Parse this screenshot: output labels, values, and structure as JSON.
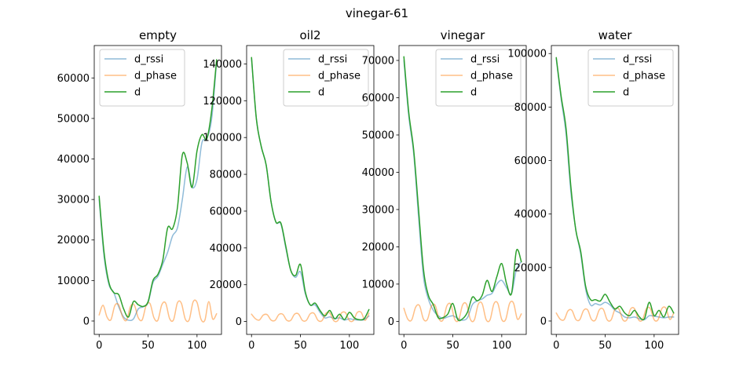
{
  "figure": {
    "suptitle": "vinegar-61"
  },
  "colors": {
    "d_rssi": "#1f77b4",
    "d_phase": "#ff7f0e",
    "d": "#2ca02c",
    "legend_border": "#cccccc"
  },
  "chart_data": [
    {
      "type": "line",
      "title": "empty",
      "xlim": [
        -5,
        125
      ],
      "ylim": [
        -3300,
        68000
      ],
      "xticks": [
        0,
        50,
        100
      ],
      "yticks": [
        0,
        10000,
        20000,
        30000,
        40000,
        50000,
        60000
      ],
      "legend": "top-left",
      "series": [
        {
          "name": "d_rssi",
          "x": [
            0,
            5,
            10,
            15,
            20,
            25,
            30,
            35,
            40,
            45,
            50,
            55,
            60,
            65,
            70,
            75,
            80,
            85,
            90,
            95,
            100,
            105,
            110,
            115,
            120
          ],
          "values": [
            30000,
            16000,
            9000,
            7000,
            3500,
            1000,
            200,
            500,
            3000,
            3500,
            4500,
            9500,
            11000,
            14000,
            17000,
            21000,
            23000,
            30000,
            38000,
            33000,
            35000,
            44000,
            45000,
            50000,
            64000
          ]
        },
        {
          "name": "d_phase",
          "x": [
            0,
            4,
            8,
            12,
            16,
            20,
            24,
            28,
            32,
            36,
            40,
            44,
            48,
            52,
            56,
            60,
            64,
            68,
            72,
            76,
            80,
            84,
            88,
            92,
            96,
            100,
            104,
            108,
            112,
            116,
            120
          ],
          "values": [
            1500,
            3900,
            1000,
            300,
            3800,
            4000,
            1000,
            200,
            3600,
            3900,
            800,
            300,
            3800,
            4300,
            800,
            200,
            4000,
            4400,
            600,
            300,
            4500,
            4400,
            500,
            300,
            4700,
            4600,
            500,
            200,
            4800,
            500,
            1800
          ]
        },
        {
          "name": "d",
          "x": [
            0,
            5,
            10,
            15,
            20,
            25,
            30,
            35,
            40,
            45,
            50,
            55,
            60,
            65,
            70,
            75,
            80,
            85,
            90,
            95,
            100,
            105,
            110,
            115,
            120
          ],
          "values": [
            30800,
            17000,
            9500,
            7000,
            6500,
            3000,
            1000,
            4800,
            4000,
            3600,
            4800,
            10000,
            11500,
            15000,
            23000,
            22800,
            28000,
            41000,
            39000,
            33000,
            42000,
            46000,
            45000,
            52000,
            64500
          ]
        }
      ]
    },
    {
      "type": "line",
      "title": "oil2",
      "xlim": [
        -5,
        125
      ],
      "ylim": [
        -7000,
        150000
      ],
      "xticks": [
        0,
        50,
        100
      ],
      "yticks": [
        0,
        20000,
        40000,
        60000,
        80000,
        100000,
        120000,
        140000
      ],
      "legend": "top-right",
      "series": [
        {
          "name": "d_rssi",
          "x": [
            0,
            5,
            10,
            15,
            20,
            25,
            30,
            35,
            40,
            45,
            50,
            55,
            60,
            65,
            70,
            75,
            80,
            85,
            90,
            95,
            100,
            105,
            110,
            115,
            120
          ],
          "values": [
            143000,
            110000,
            95000,
            85000,
            65000,
            54000,
            53000,
            40000,
            28000,
            24000,
            27000,
            15000,
            9000,
            9000,
            5000,
            2000,
            2500,
            1500,
            2000,
            800,
            1500,
            1000,
            800,
            1000,
            3000
          ]
        },
        {
          "name": "d_phase",
          "x": [
            0,
            4,
            8,
            12,
            16,
            20,
            24,
            28,
            32,
            36,
            40,
            44,
            48,
            52,
            56,
            60,
            64,
            68,
            72,
            76,
            80,
            84,
            88,
            92,
            96,
            100,
            104,
            108,
            112,
            116,
            120
          ],
          "values": [
            4000,
            1500,
            800,
            3500,
            3700,
            800,
            600,
            3800,
            3900,
            700,
            600,
            4000,
            4100,
            600,
            600,
            4200,
            4400,
            600,
            500,
            4500,
            4600,
            500,
            400,
            4700,
            4800,
            500,
            500,
            4900,
            5000,
            600,
            4500
          ]
        },
        {
          "name": "d",
          "x": [
            0,
            5,
            10,
            15,
            20,
            25,
            30,
            35,
            40,
            45,
            50,
            55,
            60,
            65,
            70,
            75,
            80,
            85,
            90,
            95,
            100,
            105,
            110,
            115,
            120
          ],
          "values": [
            143500,
            110000,
            95000,
            85000,
            65000,
            54000,
            53500,
            41000,
            28000,
            25000,
            31000,
            16000,
            9000,
            10000,
            6000,
            3000,
            6000,
            1500,
            4000,
            1000,
            5000,
            2000,
            1000,
            1500,
            6500
          ]
        }
      ]
    },
    {
      "type": "line",
      "title": "vinegar",
      "xlim": [
        -5,
        125
      ],
      "ylim": [
        -3500,
        74000
      ],
      "xticks": [
        0,
        50,
        100
      ],
      "yticks": [
        0,
        10000,
        20000,
        30000,
        40000,
        50000,
        60000,
        70000
      ],
      "legend": "top-right",
      "series": [
        {
          "name": "d_rssi",
          "x": [
            0,
            5,
            10,
            15,
            20,
            25,
            30,
            35,
            40,
            45,
            50,
            55,
            60,
            65,
            70,
            75,
            80,
            85,
            90,
            95,
            100,
            105,
            110,
            115,
            120
          ],
          "values": [
            70000,
            55000,
            45000,
            28000,
            12000,
            6000,
            3000,
            1500,
            800,
            1200,
            1500,
            800,
            300,
            1000,
            4500,
            5500,
            6000,
            7000,
            7500,
            10000,
            11000,
            9000,
            7500,
            14000,
            16000
          ]
        },
        {
          "name": "d_phase",
          "x": [
            0,
            4,
            8,
            12,
            16,
            20,
            24,
            28,
            32,
            36,
            40,
            44,
            48,
            52,
            56,
            60,
            64,
            68,
            72,
            76,
            80,
            84,
            88,
            92,
            96,
            100,
            104,
            108,
            112,
            116,
            120
          ],
          "values": [
            3500,
            600,
            400,
            3800,
            4200,
            600,
            500,
            4000,
            4300,
            600,
            400,
            4200,
            4500,
            500,
            400,
            4400,
            4600,
            500,
            400,
            4600,
            4700,
            500,
            400,
            4700,
            4800,
            500,
            500,
            4800,
            4900,
            600,
            2000
          ]
        },
        {
          "name": "d",
          "x": [
            0,
            5,
            10,
            15,
            20,
            25,
            30,
            35,
            40,
            45,
            50,
            55,
            60,
            65,
            70,
            75,
            80,
            85,
            90,
            95,
            100,
            105,
            110,
            115,
            120
          ],
          "values": [
            71000,
            56000,
            46000,
            30000,
            14000,
            7000,
            4500,
            1000,
            1000,
            2000,
            4800,
            500,
            700,
            2500,
            6500,
            5500,
            7000,
            11000,
            8000,
            12000,
            15500,
            10000,
            7500,
            19000,
            16000
          ]
        }
      ]
    },
    {
      "type": "line",
      "title": "water",
      "xlim": [
        -5,
        125
      ],
      "ylim": [
        -5000,
        103000
      ],
      "xticks": [
        0,
        50,
        100
      ],
      "yticks": [
        0,
        20000,
        40000,
        60000,
        80000,
        100000
      ],
      "legend": "top-right",
      "series": [
        {
          "name": "d_rssi",
          "x": [
            0,
            5,
            10,
            15,
            20,
            25,
            30,
            35,
            40,
            45,
            50,
            55,
            60,
            65,
            70,
            75,
            80,
            85,
            90,
            95,
            100,
            105,
            110,
            115,
            120
          ],
          "values": [
            98000,
            83000,
            70000,
            48000,
            34000,
            25000,
            12000,
            6000,
            6500,
            6000,
            7000,
            6000,
            4000,
            3000,
            1500,
            1200,
            1500,
            800,
            500,
            2000,
            1800,
            1500,
            1200,
            1500,
            1500
          ]
        },
        {
          "name": "d_phase",
          "x": [
            0,
            4,
            8,
            12,
            16,
            20,
            24,
            28,
            32,
            36,
            40,
            44,
            48,
            52,
            56,
            60,
            64,
            68,
            72,
            76,
            80,
            84,
            88,
            92,
            96,
            100,
            104,
            108,
            112,
            116,
            120
          ],
          "values": [
            3000,
            700,
            500,
            3800,
            4000,
            600,
            500,
            4000,
            4200,
            600,
            400,
            4200,
            4400,
            500,
            400,
            4400,
            4500,
            500,
            400,
            4500,
            4600,
            500,
            400,
            4600,
            4700,
            500,
            500,
            4700,
            4800,
            600,
            3000
          ]
        },
        {
          "name": "d",
          "x": [
            0,
            5,
            10,
            15,
            20,
            25,
            30,
            35,
            40,
            45,
            50,
            55,
            60,
            65,
            70,
            75,
            80,
            85,
            90,
            95,
            100,
            105,
            110,
            115,
            120
          ],
          "values": [
            98500,
            84000,
            72000,
            50000,
            34000,
            26000,
            13000,
            8000,
            8000,
            7500,
            10000,
            7000,
            4500,
            5500,
            3000,
            2000,
            4000,
            1500,
            800,
            7000,
            2000,
            4000,
            1500,
            5500,
            3000
          ]
        }
      ]
    }
  ]
}
